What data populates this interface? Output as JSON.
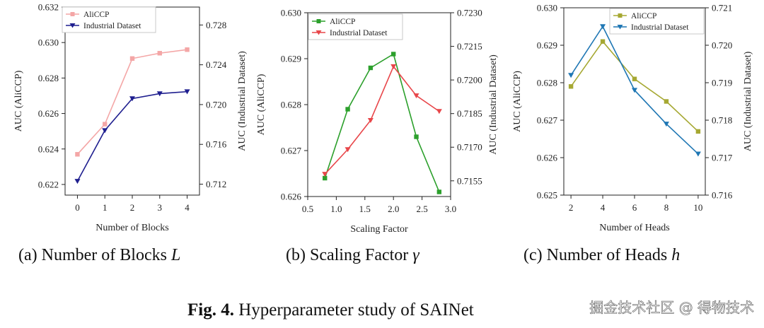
{
  "chart_data": [
    {
      "type": "line",
      "subcaption": "(a) Number of Blocks",
      "subcaption_var": "L",
      "xlabel": "Number of Blocks",
      "ylabel_left": "AUC (AliCCP)",
      "ylabel_right": "AUC (Industrial Dataset)",
      "x": [
        0,
        1,
        2,
        3,
        4
      ],
      "xticks": [
        "0",
        "1",
        "2",
        "3",
        "4"
      ],
      "xlim": [
        -0.45,
        4.45
      ],
      "ylim_left": [
        0.6214,
        0.632
      ],
      "yticks_left": [
        "0.622",
        "0.624",
        "0.626",
        "0.628",
        "0.630",
        "0.632"
      ],
      "ylim_right": [
        0.7109,
        0.7298
      ],
      "yticks_right": [
        "0.712",
        "0.716",
        "0.720",
        "0.724",
        "0.728"
      ],
      "legend_position": "top-left",
      "series": [
        {
          "name": "AliCCP",
          "axis": "left",
          "marker": "square",
          "color": "#f4a6a6",
          "values": [
            0.6237,
            0.6254,
            0.6291,
            0.6294,
            0.6296
          ]
        },
        {
          "name": "Industrial Dataset",
          "axis": "right",
          "marker": "triangle-down",
          "color": "#1f1f8f",
          "values": [
            0.7123,
            0.7174,
            0.7206,
            0.7211,
            0.7213
          ]
        }
      ]
    },
    {
      "type": "line",
      "subcaption": "(b) Scaling Factor",
      "subcaption_var": "γ",
      "xlabel": "Scaling Factor",
      "ylabel_left": "AUC (AliCCP)",
      "ylabel_right": "AUC (Industrial Dataset)",
      "x": [
        0.8,
        1.2,
        1.6,
        2.0,
        2.4,
        2.8
      ],
      "xticks": [
        "0.5",
        "1.0",
        "1.5",
        "2.0",
        "2.5",
        "3.0"
      ],
      "xtick_values": [
        0.5,
        1.0,
        1.5,
        2.0,
        2.5,
        3.0
      ],
      "xlim": [
        0.5,
        3.0
      ],
      "ylim_left": [
        0.626,
        0.63
      ],
      "yticks_left": [
        "0.626",
        "0.627",
        "0.628",
        "0.629",
        "0.630"
      ],
      "ylim_right": [
        0.7148,
        0.723
      ],
      "yticks_right": [
        "0.7155",
        "0.7170",
        "0.7185",
        "0.7200",
        "0.7215",
        "0.7230"
      ],
      "legend_position": "top-left",
      "series": [
        {
          "name": "AliCCP",
          "axis": "left",
          "marker": "square",
          "color": "#2ca02c",
          "values": [
            0.6264,
            0.6279,
            0.6288,
            0.6291,
            0.6273,
            0.6261
          ]
        },
        {
          "name": "Industrial Dataset",
          "axis": "right",
          "marker": "triangle-down",
          "color": "#e8464a",
          "values": [
            0.7158,
            0.7169,
            0.7182,
            0.7206,
            0.7193,
            0.7186
          ]
        }
      ]
    },
    {
      "type": "line",
      "subcaption": "(c) Number of Heads",
      "subcaption_var": "h",
      "xlabel": "Number of Heads",
      "ylabel_left": "AUC (AliCCP)",
      "ylabel_right": "AUC (Industrial Dataset)",
      "x": [
        2,
        4,
        6,
        8,
        10
      ],
      "xticks": [
        "2",
        "4",
        "6",
        "8",
        "10"
      ],
      "xlim": [
        1.55,
        10.45
      ],
      "ylim_left": [
        0.625,
        0.63
      ],
      "yticks_left": [
        "0.625",
        "0.626",
        "0.627",
        "0.628",
        "0.629",
        "0.630"
      ],
      "ylim_right": [
        0.716,
        0.721
      ],
      "yticks_right": [
        "0.716",
        "0.717",
        "0.718",
        "0.719",
        "0.720",
        "0.721"
      ],
      "legend_position": "top-right",
      "series": [
        {
          "name": "AliCCP",
          "axis": "left",
          "marker": "square",
          "color": "#a6a832",
          "values": [
            0.6279,
            0.6291,
            0.6281,
            0.6275,
            0.6267
          ]
        },
        {
          "name": "Industrial Dataset",
          "axis": "right",
          "marker": "triangle-down",
          "color": "#1f77b4",
          "values": [
            0.7192,
            0.7205,
            0.7188,
            0.7179,
            0.7171
          ]
        }
      ]
    }
  ],
  "caption": {
    "label": "Fig. 4.",
    "text": "Hyperparameter study of SAINet"
  },
  "watermark": "掘金技术社区 @ 得物技术"
}
